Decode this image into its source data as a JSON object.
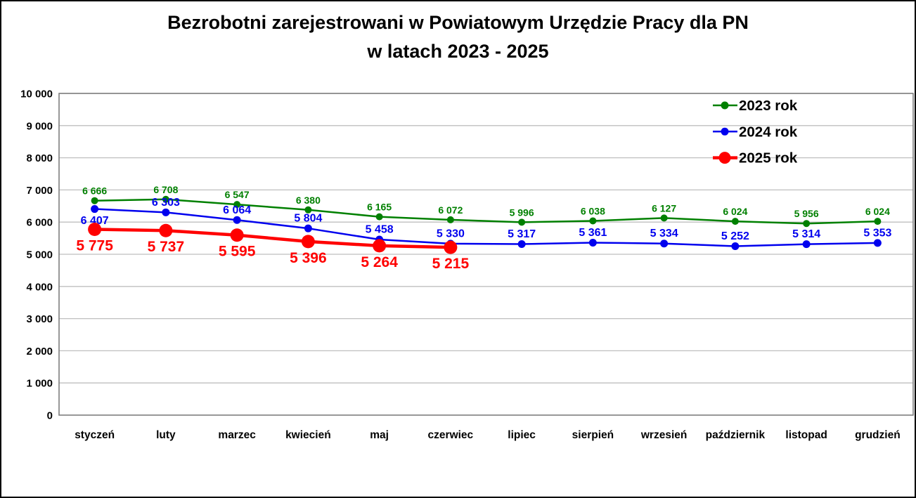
{
  "chart_data": {
    "type": "line",
    "title_line1": "Bezrobotni zarejestrowani w Powiatowym Urzędzie Pracy dla PN",
    "title_line2": "w latach 2023 - 2025",
    "categories": [
      "styczeń",
      "luty",
      "marzec",
      "kwiecień",
      "maj",
      "czerwiec",
      "lipiec",
      "sierpień",
      "wrzesień",
      "październik",
      "listopad",
      "grudzień"
    ],
    "y_axis": {
      "min": 0,
      "max": 10000,
      "step": 1000,
      "tick_labels": [
        "0",
        "1 000",
        "2 000",
        "3 000",
        "4 000",
        "5 000",
        "6 000",
        "7 000",
        "8 000",
        "9 000",
        "10 000"
      ]
    },
    "series": [
      {
        "name": "2023 rok",
        "color": "#008000",
        "values": [
          6666,
          6708,
          6547,
          6380,
          6165,
          6072,
          5996,
          6038,
          6127,
          6024,
          5956,
          6024
        ],
        "line_width": 2.5,
        "marker_radius": 5,
        "label_font_size": 14,
        "label_side": "above",
        "label_side_overrides": {}
      },
      {
        "name": "2024 rok",
        "color": "#0000EE",
        "values": [
          6407,
          6303,
          6064,
          5804,
          5458,
          5330,
          5317,
          5361,
          5334,
          5252,
          5314,
          5353
        ],
        "line_width": 2.5,
        "marker_radius": 5.5,
        "label_font_size": 16,
        "label_side": "above",
        "label_side_overrides": {
          "0": "below"
        }
      },
      {
        "name": "2025 rok",
        "color": "#FF0000",
        "values": [
          5775,
          5737,
          5595,
          5396,
          5264,
          5215,
          null,
          null,
          null,
          null,
          null,
          null
        ],
        "line_width": 4.5,
        "marker_radius": 9.5,
        "label_font_size": 21,
        "label_side": "below",
        "label_side_overrides": {}
      }
    ],
    "legend_position": "top-right",
    "grid_on": true,
    "grid_color": "#BFBFBF",
    "axis_color": "#7F7F7F",
    "label_number_format": "thousands-space"
  }
}
